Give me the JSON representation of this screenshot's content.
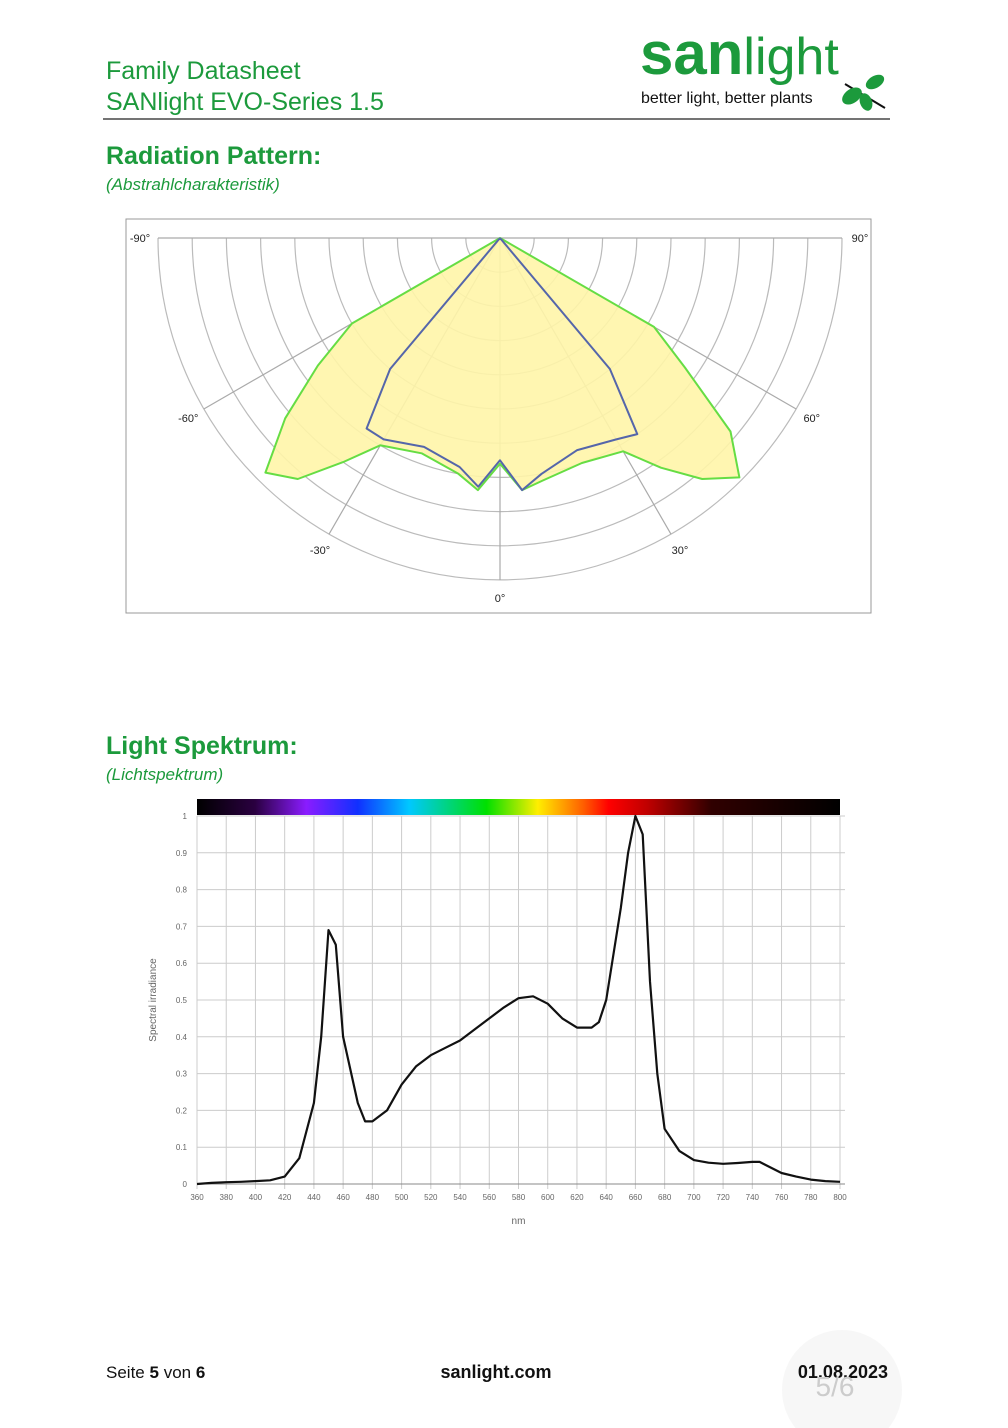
{
  "header": {
    "title_line1": "Family Datasheet",
    "title_line2": "SANlight EVO-Series 1.5",
    "logo_bold": "san",
    "logo_light": "light",
    "tagline": "better light, better plants"
  },
  "sections": [
    {
      "heading": "Radiation Pattern:",
      "subheading": "(Abstrahlcharakteristik)"
    },
    {
      "heading": "Light Spektrum:",
      "subheading": "(Lichtspektrum)"
    }
  ],
  "chart_data": [
    {
      "type": "polar",
      "rlim": [
        0,
        100
      ],
      "rticks": [
        10,
        20,
        30,
        40,
        50,
        60,
        70,
        80,
        90,
        100
      ],
      "theta_ticks": [
        {
          "value": -90,
          "label": "-90°"
        },
        {
          "value": -60,
          "label": "-60°"
        },
        {
          "value": -30,
          "label": "-30°"
        },
        {
          "value": 0,
          "label": "0°"
        },
        {
          "value": 30,
          "label": "30°"
        },
        {
          "value": 60,
          "label": "60°"
        },
        {
          "value": 90,
          "label": "90°"
        }
      ],
      "series": [
        {
          "color": "#66dd44",
          "fill": "#fff5a8",
          "x": [
            -90,
            -65,
            -60,
            -55,
            -50,
            -45,
            -40,
            -35,
            -30,
            -20,
            -10,
            -5,
            0,
            5,
            10,
            20,
            30,
            35,
            40,
            45,
            50,
            55,
            60,
            65,
            90
          ],
          "values": [
            0,
            0,
            50,
            65,
            82,
            97,
            92,
            80,
            70,
            67,
            70,
            74,
            66,
            74,
            72,
            70,
            72,
            82,
            92,
            99,
            88,
            66,
            52,
            0,
            0
          ]
        },
        {
          "color": "#5566aa",
          "x": [
            -90,
            -45,
            -40,
            -35,
            -30,
            -20,
            -10,
            -5,
            0,
            5,
            10,
            20,
            30,
            35,
            40,
            45,
            90
          ],
          "values": [
            0,
            0,
            50,
            68,
            68,
            65,
            68,
            73,
            65,
            74,
            70,
            66,
            68,
            70,
            50,
            0,
            0
          ]
        }
      ]
    },
    {
      "type": "line",
      "xlabel": "nm",
      "ylabel": "Spectral irradiance",
      "xlim": [
        360,
        800
      ],
      "ylim": [
        0,
        1
      ],
      "xticks": [
        360,
        380,
        400,
        420,
        440,
        460,
        480,
        500,
        520,
        540,
        560,
        580,
        600,
        620,
        640,
        660,
        680,
        700,
        720,
        740,
        760,
        780,
        800
      ],
      "yticks": [
        0,
        0.1,
        0.2,
        0.3,
        0.4,
        0.5,
        0.6,
        0.7,
        0.8,
        0.9,
        1
      ],
      "grid": true,
      "series": [
        {
          "color": "#111111",
          "x": [
            360,
            370,
            380,
            390,
            400,
            410,
            420,
            430,
            440,
            445,
            450,
            455,
            460,
            470,
            475,
            480,
            490,
            500,
            510,
            520,
            530,
            540,
            550,
            560,
            570,
            580,
            590,
            600,
            610,
            620,
            630,
            635,
            640,
            650,
            655,
            660,
            665,
            670,
            675,
            680,
            690,
            700,
            710,
            720,
            730,
            740,
            745,
            750,
            760,
            770,
            780,
            790,
            800
          ],
          "values": [
            0,
            0.003,
            0.005,
            0.006,
            0.008,
            0.01,
            0.02,
            0.07,
            0.22,
            0.4,
            0.69,
            0.65,
            0.4,
            0.22,
            0.17,
            0.17,
            0.2,
            0.27,
            0.32,
            0.35,
            0.37,
            0.39,
            0.42,
            0.45,
            0.48,
            0.505,
            0.51,
            0.49,
            0.45,
            0.425,
            0.425,
            0.44,
            0.5,
            0.75,
            0.9,
            1,
            0.95,
            0.55,
            0.3,
            0.15,
            0.09,
            0.065,
            0.058,
            0.055,
            0.057,
            0.06,
            0.06,
            0.05,
            0.03,
            0.02,
            0.012,
            0.008,
            0.006
          ]
        }
      ]
    }
  ],
  "footer": {
    "page_prefix": "Seite",
    "page": 5,
    "page_mid": "von",
    "pages": 6,
    "site": "sanlight.com",
    "date": "01.08.2023",
    "viewer_indicator": "5/6"
  }
}
